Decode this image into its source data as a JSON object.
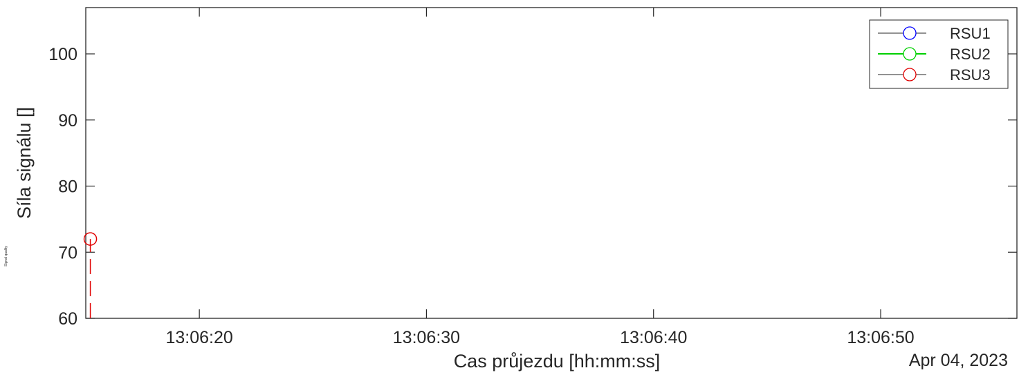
{
  "chart_data": {
    "type": "line",
    "title": "",
    "xlabel": "Cas průjezdu [hh:mm:ss]",
    "ylabel": "Síla signálu []",
    "side_label": "Signal quality",
    "date_label": "Apr 04, 2023",
    "xlim": [
      "13:06:15",
      "13:06:56"
    ],
    "ylim": [
      60,
      107
    ],
    "x_ticks": [
      "13:06:20",
      "13:06:30",
      "13:06:40",
      "13:06:50"
    ],
    "y_ticks": [
      60,
      70,
      80,
      90,
      100
    ],
    "grid": false,
    "legend_position": "top-right",
    "series": [
      {
        "name": "RSU1",
        "color": "#0000ff",
        "line_style": "solid",
        "marker": "circle",
        "points": []
      },
      {
        "name": "RSU2",
        "color": "#00d000",
        "line_style": "solid",
        "marker": "circle",
        "points": []
      },
      {
        "name": "RSU3",
        "color": "#e00000",
        "line_style": "dashed",
        "marker": "circle",
        "points": [
          {
            "x": "13:06:15.2",
            "y": 60
          },
          {
            "x": "13:06:15.2",
            "y": 72
          }
        ]
      }
    ]
  }
}
